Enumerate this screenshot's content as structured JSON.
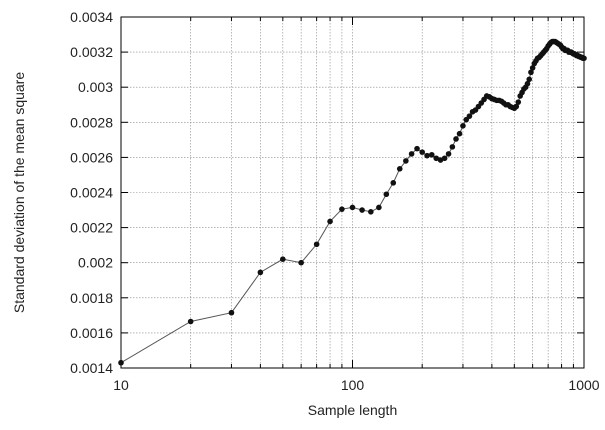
{
  "chart_data": {
    "type": "line",
    "title": "",
    "xlabel": "Sample length",
    "ylabel": "Standard deviation of the mean square",
    "x_scale": "log",
    "xlim": [
      10,
      1000
    ],
    "ylim": [
      0.0014,
      0.0034
    ],
    "grid": true,
    "x_tick_labels": [
      "10",
      "100",
      "1000"
    ],
    "y_tick_labels": [
      "0.0014",
      "0.0016",
      "0.0018",
      "0.002",
      "0.0022",
      "0.0024",
      "0.0026",
      "0.0028",
      "0.003",
      "0.0032",
      "0.0034"
    ],
    "line_color": "#555555",
    "marker_color": "#111111",
    "series": [
      {
        "x": [
          10,
          20,
          30,
          40,
          50,
          60,
          70,
          80,
          90,
          100,
          110,
          120,
          130,
          140,
          150,
          160,
          170,
          180,
          190,
          200,
          210,
          220,
          230,
          240,
          250,
          260,
          270,
          280,
          290,
          300,
          310,
          320,
          330,
          340,
          350,
          360,
          370,
          380,
          390,
          400,
          410,
          420,
          430,
          440,
          450,
          460,
          470,
          480,
          490,
          500,
          510,
          520,
          530,
          540,
          550,
          560,
          570,
          580,
          590,
          600,
          610,
          620,
          630,
          640,
          650,
          660,
          670,
          680,
          690,
          700,
          710,
          720,
          730,
          740,
          750,
          760,
          770,
          780,
          790,
          800,
          810,
          820,
          830,
          840,
          850,
          860,
          870,
          880,
          890,
          900,
          910,
          920,
          930,
          940,
          950,
          960,
          970,
          980,
          990,
          1000
        ],
        "y": [
          0.00143,
          0.001665,
          0.001715,
          0.001945,
          0.00202,
          0.002,
          0.002105,
          0.002235,
          0.002305,
          0.002315,
          0.0023,
          0.00229,
          0.002315,
          0.00239,
          0.002455,
          0.002535,
          0.00258,
          0.00262,
          0.00265,
          0.00263,
          0.00261,
          0.002615,
          0.002595,
          0.002585,
          0.002595,
          0.00262,
          0.00266,
          0.002705,
          0.002735,
          0.00278,
          0.002815,
          0.002835,
          0.00286,
          0.00287,
          0.00289,
          0.00291,
          0.00293,
          0.00295,
          0.002945,
          0.002935,
          0.00293,
          0.002925,
          0.002925,
          0.00292,
          0.00291,
          0.0029,
          0.0029,
          0.00289,
          0.002885,
          0.00288,
          0.00289,
          0.002915,
          0.00295,
          0.00297,
          0.00299,
          0.003,
          0.00302,
          0.003045,
          0.003085,
          0.00311,
          0.003135,
          0.00315,
          0.003165,
          0.00317,
          0.00318,
          0.00319,
          0.0032,
          0.00321,
          0.00322,
          0.003235,
          0.003245,
          0.003255,
          0.00326,
          0.00326,
          0.00326,
          0.003255,
          0.00325,
          0.003245,
          0.00324,
          0.00323,
          0.00322,
          0.00322,
          0.00321,
          0.00321,
          0.00321,
          0.0032,
          0.0032,
          0.0032,
          0.003195,
          0.00319,
          0.00319,
          0.003185,
          0.00318,
          0.00318,
          0.003175,
          0.003175,
          0.00317,
          0.00317,
          0.003165,
          0.003165
        ]
      }
    ]
  }
}
